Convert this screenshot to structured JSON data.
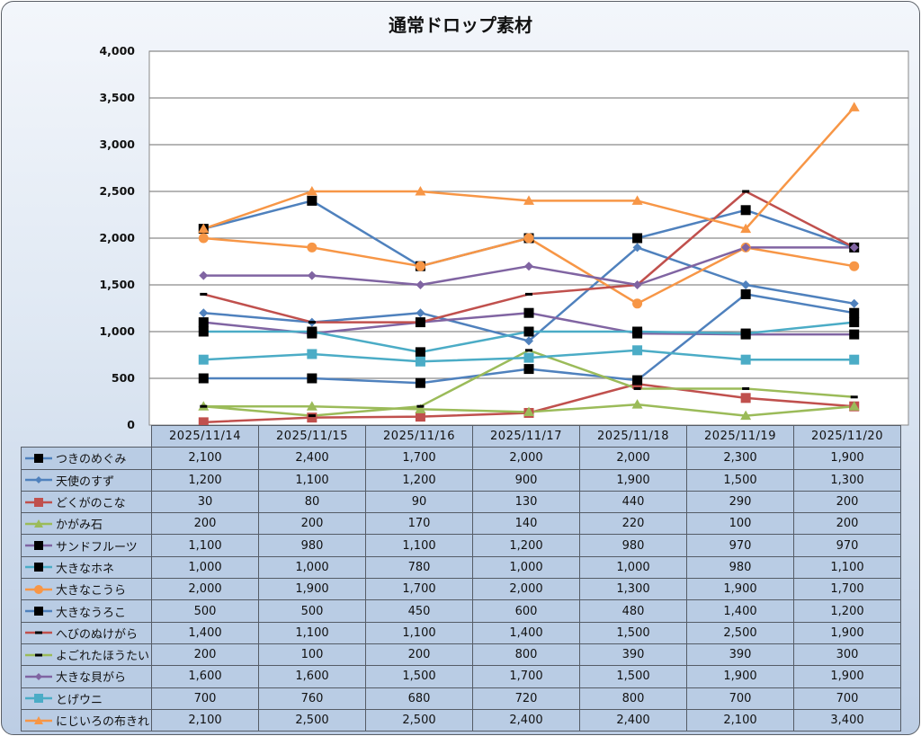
{
  "chart_data": {
    "type": "line",
    "title": "通常ドロップ素材",
    "xlabel": "",
    "ylabel": "",
    "ylim": [
      0,
      4000
    ],
    "yticks": [
      0,
      500,
      1000,
      1500,
      2000,
      2500,
      3000,
      3500,
      4000
    ],
    "ytick_labels": [
      "0",
      "500",
      "1,000",
      "1,500",
      "2,000",
      "2,500",
      "3,000",
      "3,500",
      "4,000"
    ],
    "grid": true,
    "legend": "data-table-below",
    "categories": [
      "2025/11/14",
      "2025/11/15",
      "2025/11/16",
      "2025/11/17",
      "2025/11/18",
      "2025/11/19",
      "2025/11/20"
    ],
    "series": [
      {
        "name": "つきのめぐみ",
        "color": "#4f81bd",
        "marker": "square-black",
        "values": [
          2100,
          2400,
          1700,
          2000,
          2000,
          2300,
          1900
        ],
        "labels": [
          "2,100",
          "2,400",
          "1,700",
          "2,000",
          "2,000",
          "2,300",
          "1,900"
        ]
      },
      {
        "name": "天使のすず",
        "color": "#4f81bd",
        "marker": "diamond",
        "values": [
          1200,
          1100,
          1200,
          900,
          1900,
          1500,
          1300
        ],
        "labels": [
          "1,200",
          "1,100",
          "1,200",
          "900",
          "1,900",
          "1,500",
          "1,300"
        ]
      },
      {
        "name": "どくがのこな",
        "color": "#c0504d",
        "marker": "square",
        "values": [
          30,
          80,
          90,
          130,
          440,
          290,
          200
        ],
        "labels": [
          "30",
          "80",
          "90",
          "130",
          "440",
          "290",
          "200"
        ]
      },
      {
        "name": "かがみ石",
        "color": "#9bbb59",
        "marker": "triangle",
        "values": [
          200,
          200,
          170,
          140,
          220,
          100,
          200
        ],
        "labels": [
          "200",
          "200",
          "170",
          "140",
          "220",
          "100",
          "200"
        ]
      },
      {
        "name": "サンドフルーツ",
        "color": "#8064a2",
        "marker": "square-black",
        "values": [
          1100,
          980,
          1100,
          1200,
          980,
          970,
          970
        ],
        "labels": [
          "1,100",
          "980",
          "1,100",
          "1,200",
          "980",
          "970",
          "970"
        ]
      },
      {
        "name": "大きなホネ",
        "color": "#4bacc6",
        "marker": "square-black",
        "values": [
          1000,
          1000,
          780,
          1000,
          1000,
          980,
          1100
        ],
        "labels": [
          "1,000",
          "1,000",
          "780",
          "1,000",
          "1,000",
          "980",
          "1,100"
        ]
      },
      {
        "name": "大きなこうら",
        "color": "#f79646",
        "marker": "circle",
        "values": [
          2000,
          1900,
          1700,
          2000,
          1300,
          1900,
          1700
        ],
        "labels": [
          "2,000",
          "1,900",
          "1,700",
          "2,000",
          "1,300",
          "1,900",
          "1,700"
        ]
      },
      {
        "name": "大きなうろこ",
        "color": "#4f81bd",
        "marker": "square-black",
        "values": [
          500,
          500,
          450,
          600,
          480,
          1400,
          1200
        ],
        "labels": [
          "500",
          "500",
          "450",
          "600",
          "480",
          "1,400",
          "1,200"
        ]
      },
      {
        "name": "へびのぬけがら",
        "color": "#c0504d",
        "marker": "dash-black",
        "values": [
          1400,
          1100,
          1100,
          1400,
          1500,
          2500,
          1900
        ],
        "labels": [
          "1,400",
          "1,100",
          "1,100",
          "1,400",
          "1,500",
          "2,500",
          "1,900"
        ]
      },
      {
        "name": "よごれたほうたい",
        "color": "#9bbb59",
        "marker": "dash-black",
        "values": [
          200,
          100,
          200,
          800,
          390,
          390,
          300
        ],
        "labels": [
          "200",
          "100",
          "200",
          "800",
          "390",
          "390",
          "300"
        ]
      },
      {
        "name": "大きな貝がら",
        "color": "#8064a2",
        "marker": "diamond",
        "values": [
          1600,
          1600,
          1500,
          1700,
          1500,
          1900,
          1900
        ],
        "labels": [
          "1,600",
          "1,600",
          "1,500",
          "1,700",
          "1,500",
          "1,900",
          "1,900"
        ]
      },
      {
        "name": "とげウニ",
        "color": "#4bacc6",
        "marker": "square",
        "values": [
          700,
          760,
          680,
          720,
          800,
          700,
          700
        ],
        "labels": [
          "700",
          "760",
          "680",
          "720",
          "800",
          "700",
          "700"
        ]
      },
      {
        "name": "にじいろの布きれ",
        "color": "#f79646",
        "marker": "triangle",
        "values": [
          2100,
          2500,
          2500,
          2400,
          2400,
          2100,
          3400
        ],
        "labels": [
          "2,100",
          "2,500",
          "2,500",
          "2,400",
          "2,400",
          "2,100",
          "3,400"
        ]
      }
    ]
  }
}
